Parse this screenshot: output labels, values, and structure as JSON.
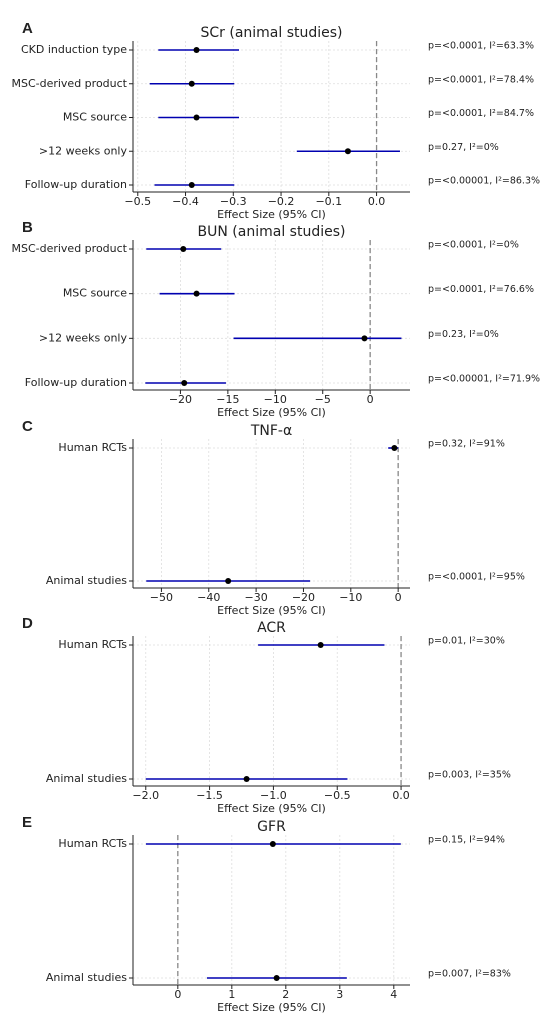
{
  "chart_data": [
    {
      "type": "forest",
      "panel": "A",
      "title": "SCr (animal studies)",
      "xlabel": "Effect Size (95% CI)",
      "categories": [
        "CKD induction type",
        "MSC-derived product",
        "MSC source",
        ">12 weeks only",
        "Follow-up duration"
      ],
      "values": [
        -0.377,
        -0.387,
        -0.377,
        -0.06,
        -0.387
      ],
      "ci_low": [
        -0.457,
        -0.475,
        -0.457,
        -0.167,
        -0.465
      ],
      "ci_high": [
        -0.288,
        -0.298,
        -0.288,
        0.049,
        -0.298
      ],
      "annotations": [
        "p=<0.0001, I²=63.3%",
        "p=<0.0001, I²=78.4%",
        "p=<0.0001, I²=84.7%",
        "p=0.27, I²=0%",
        "p=<0.00001, I²=86.3%"
      ],
      "xlim": [
        -0.51,
        0.07
      ],
      "xticks": [
        {
          "value": -0.5,
          "label": "−0.5"
        },
        {
          "value": -0.4,
          "label": "−0.4"
        },
        {
          "value": -0.3,
          "label": "−0.3"
        },
        {
          "value": -0.2,
          "label": "−0.2"
        },
        {
          "value": -0.1,
          "label": "−0.1"
        },
        {
          "value": 0,
          "label": "0.0"
        }
      ],
      "reference_line": 0,
      "grid": true,
      "color": "#0000b0",
      "point_color": "#000000"
    },
    {
      "type": "forest",
      "panel": "B",
      "title": "BUN (animal studies)",
      "xlabel": "Effect Size (95% CI)",
      "categories": [
        "MSC-derived product",
        "MSC source",
        ">12 weeks only",
        "Follow-up duration"
      ],
      "values": [
        -19.7,
        -18.3,
        -0.6,
        -19.6
      ],
      "ci_low": [
        -23.6,
        -22.2,
        -14.4,
        -23.7
      ],
      "ci_high": [
        -15.7,
        -14.3,
        3.3,
        -15.2
      ],
      "annotations": [
        "p=<0.0001, I²=0%",
        "p=<0.0001, I²=76.6%",
        "p=0.23, I²=0%",
        "p=<0.00001, I²=71.9%"
      ],
      "xlim": [
        -25,
        4.2
      ],
      "xticks": [
        {
          "value": -20,
          "label": "−20"
        },
        {
          "value": -15,
          "label": "−15"
        },
        {
          "value": -10,
          "label": "−10"
        },
        {
          "value": -5,
          "label": "−5"
        },
        0
      ],
      "reference_line": 0,
      "grid": true,
      "color": "#0000b0",
      "point_color": "#000000"
    },
    {
      "type": "forest",
      "panel": "C",
      "title": "TNF-α",
      "xlabel": "Effect Size (95% CI)",
      "categories": [
        "Human RCTs",
        "Animal studies"
      ],
      "values": [
        -0.8,
        -35.9
      ],
      "ci_low": [
        -2.1,
        -53.2
      ],
      "ci_high": [
        0,
        -18.6
      ],
      "annotations": [
        "p=0.32, I²=91%",
        "p=<0.0001, I²=95%"
      ],
      "xlim": [
        -56,
        2.5
      ],
      "xticks": [
        {
          "value": -50,
          "label": "−50"
        },
        {
          "value": -40,
          "label": "−40"
        },
        {
          "value": -30,
          "label": "−30"
        },
        {
          "value": -20,
          "label": "−20"
        },
        {
          "value": -10,
          "label": "−10"
        },
        0
      ],
      "reference_line": 0,
      "grid": true,
      "color": "#0000b0",
      "point_color": "#000000"
    },
    {
      "type": "forest",
      "panel": "D",
      "title": "ACR",
      "xlabel": "Effect Size (95% CI)",
      "categories": [
        "Human RCTs",
        "Animal studies"
      ],
      "values": [
        -0.63,
        -1.21
      ],
      "ci_low": [
        -1.12,
        -2.0
      ],
      "ci_high": [
        -0.13,
        -0.42
      ],
      "annotations": [
        "p=0.01, I²=30%",
        "p=0.003, I²=35%"
      ],
      "xlim": [
        -2.1,
        0.07
      ],
      "xticks": [
        {
          "value": -2.0,
          "label": "−2.0"
        },
        {
          "value": -1.5,
          "label": "−1.5"
        },
        {
          "value": -1.0,
          "label": "−1.0"
        },
        {
          "value": -0.5,
          "label": "−0.5"
        },
        {
          "value": 0,
          "label": "0.0"
        }
      ],
      "reference_line": 0,
      "grid": true,
      "color": "#0000b0",
      "point_color": "#000000"
    },
    {
      "type": "forest",
      "panel": "E",
      "title": "GFR",
      "xlabel": "Effect Size (95% CI)",
      "categories": [
        "Human RCTs",
        "Animal studies"
      ],
      "values": [
        1.76,
        1.83
      ],
      "ci_low": [
        -0.59,
        0.54
      ],
      "ci_high": [
        4.13,
        3.13
      ],
      "annotations": [
        "p=0.15, I²=94%",
        "p=0.007, I²=83%"
      ],
      "xlim": [
        -0.83,
        4.3
      ],
      "xticks": [
        0,
        1,
        2,
        3,
        4
      ],
      "reference_line": 0,
      "grid": true,
      "color": "#0000b0",
      "point_color": "#000000"
    }
  ]
}
